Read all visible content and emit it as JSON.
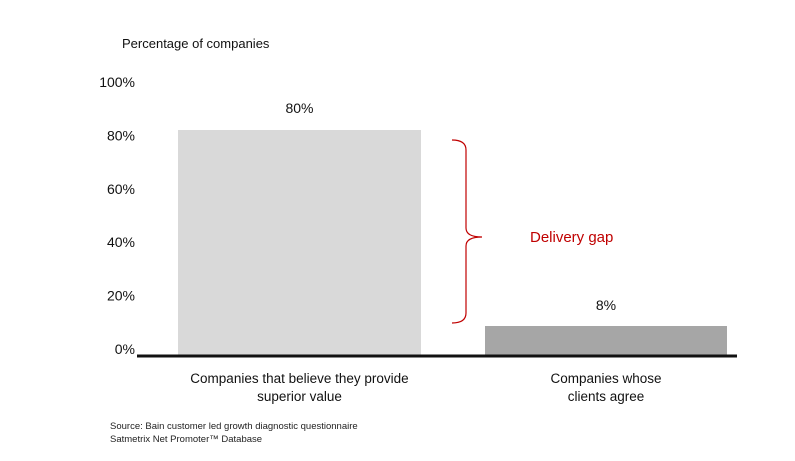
{
  "chart_data": {
    "type": "bar",
    "title": "",
    "ylabel": "Percentage of companies",
    "xlabel": "",
    "ylim": [
      0,
      100
    ],
    "yticks": [
      "0%",
      "20%",
      "40%",
      "60%",
      "80%",
      "100%"
    ],
    "ytick_values": [
      0,
      20,
      40,
      60,
      80,
      100
    ],
    "categories": [
      "Companies that believe they provide superior value",
      "Companies whose clients agree"
    ],
    "category_lines": [
      [
        "Companies that believe they provide",
        "superior value"
      ],
      [
        "Companies whose",
        "clients agree"
      ]
    ],
    "values": [
      80,
      8
    ],
    "data_labels": [
      "80%",
      "8%"
    ],
    "bar_colors": [
      "#d9d9d9",
      "#a6a6a6"
    ],
    "grid": false,
    "annotation": {
      "text": "Delivery gap",
      "color": "#c00000"
    }
  },
  "source": {
    "line1": "Source: Bain customer led growth diagnostic questionnaire",
    "line2": "Satmetrix Net Promoter™ Database"
  }
}
